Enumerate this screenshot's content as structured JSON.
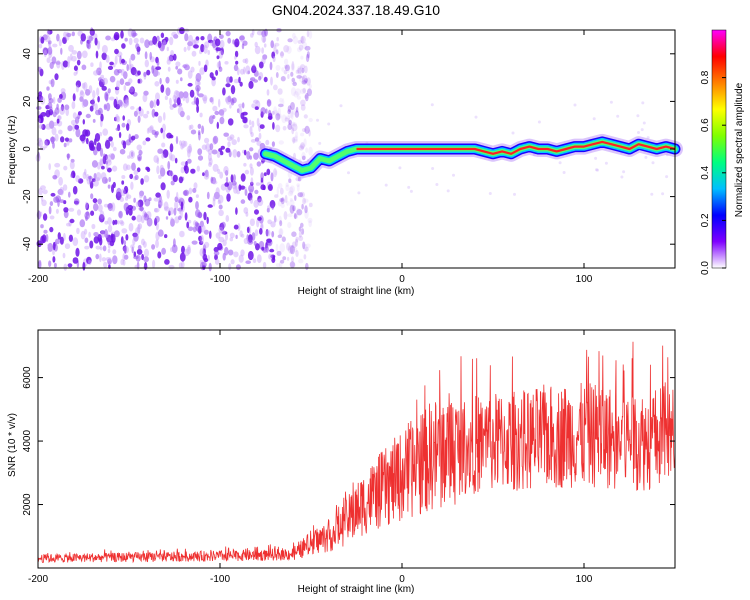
{
  "figure": {
    "title": "GN04.2024.337.18.49.G10"
  },
  "chart_data": [
    {
      "type": "heatmap",
      "name": "spectrogram",
      "xlabel": "Height of straight line (km)",
      "ylabel": "Frequency (Hz)",
      "xlim": [
        -200,
        150
      ],
      "ylim": [
        -50,
        50
      ],
      "x_ticks": [
        -200,
        -100,
        0,
        100
      ],
      "y_ticks": [
        -40,
        -20,
        0,
        20,
        40
      ],
      "grid": false,
      "colorbar": {
        "label": "Normalized spectral amplitude",
        "range": [
          0,
          1
        ],
        "ticks": [
          "0.0",
          "0.2",
          "0.4",
          "0.6",
          "0.8"
        ],
        "colors": [
          "#ffffff",
          "#7f00ff",
          "#0000ff",
          "#00bfff",
          "#00ff80",
          "#80ff00",
          "#ffff00",
          "#ff8000",
          "#ff0000",
          "#ff00ff"
        ]
      },
      "noise_region_x": [
        -200,
        -50
      ],
      "frequency_track": {
        "x": [
          -75,
          -70,
          -65,
          -60,
          -55,
          -50,
          -45,
          -40,
          -35,
          -30,
          -25,
          -20,
          -10,
          0,
          10,
          20,
          30,
          40,
          45,
          50,
          55,
          60,
          65,
          70,
          75,
          80,
          85,
          90,
          95,
          100,
          105,
          110,
          115,
          120,
          125,
          130,
          135,
          140,
          145,
          150
        ],
        "y": [
          -2,
          -3,
          -5,
          -7,
          -9,
          -8,
          -4,
          -5,
          -3,
          -1,
          0,
          0,
          0,
          0,
          0,
          0,
          0,
          0,
          -1,
          -2,
          -1,
          -2,
          0,
          1,
          0,
          0,
          -1,
          0,
          1,
          1,
          2,
          3,
          2,
          1,
          0,
          2,
          1,
          0,
          1,
          0
        ]
      }
    },
    {
      "type": "line",
      "name": "snr",
      "xlabel": "Height of straight line (km)",
      "ylabel": "SNR (10 * v/v)",
      "xlim": [
        -200,
        150
      ],
      "ylim": [
        0,
        7500
      ],
      "x_ticks": [
        -200,
        -100,
        0,
        100
      ],
      "y_ticks": [
        2000,
        4000,
        6000
      ],
      "grid": false,
      "line_color": "#ee3030",
      "series": [
        {
          "x": [
            -200,
            -190,
            -180,
            -170,
            -160,
            -150,
            -140,
            -130,
            -120,
            -110,
            -100,
            -90,
            -80,
            -70,
            -60,
            -55,
            -50,
            -45,
            -40,
            -35,
            -30,
            -25,
            -20,
            -15,
            -10,
            -5,
            0,
            5,
            10,
            15,
            20,
            25,
            30,
            35,
            40,
            45,
            50,
            55,
            60,
            65,
            70,
            75,
            80,
            85,
            90,
            95,
            100,
            105,
            110,
            115,
            120,
            125,
            130,
            135,
            140,
            145,
            150
          ],
          "y": [
            300,
            310,
            320,
            330,
            330,
            340,
            340,
            350,
            360,
            370,
            380,
            390,
            400,
            420,
            450,
            600,
            800,
            900,
            1000,
            1200,
            1500,
            1800,
            2100,
            2300,
            2500,
            2700,
            2900,
            3100,
            3300,
            3500,
            3650,
            3750,
            3800,
            3850,
            3900,
            3950,
            3950,
            4000,
            4000,
            4050,
            4000,
            4100,
            4150,
            4100,
            4200,
            4200,
            4150,
            4200,
            4200,
            4100,
            4000,
            4100,
            4050,
            4000,
            4100,
            4200,
            4100
          ]
        }
      ]
    }
  ]
}
